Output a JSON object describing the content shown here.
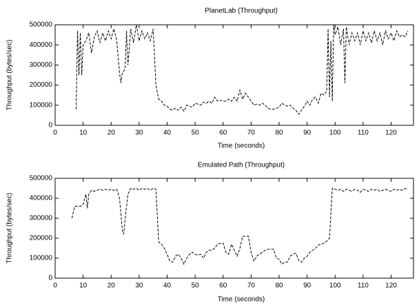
{
  "chart_data": [
    {
      "type": "line",
      "title": "PlanetLab (Throughput)",
      "xlabel": "Time (seconds)",
      "ylabel": "Throughput (bytes/sec)",
      "color": "#000000",
      "dashed": true,
      "xlim": [
        0,
        128
      ],
      "ylim": [
        0,
        500000
      ],
      "xticks": [
        0,
        10,
        20,
        30,
        40,
        50,
        60,
        70,
        80,
        90,
        100,
        110,
        120
      ],
      "yticks": [
        0,
        100000,
        200000,
        300000,
        400000,
        500000
      ],
      "x": [
        7.5,
        8,
        8.5,
        9,
        9.5,
        10,
        11,
        12,
        13,
        14,
        15,
        16,
        17,
        18,
        19,
        20,
        21,
        22,
        23,
        23.5,
        24,
        25,
        25.5,
        26,
        27,
        28,
        29,
        30,
        31,
        32,
        33,
        34,
        35,
        36,
        37,
        38,
        39,
        40,
        41,
        42,
        43,
        44,
        45,
        46,
        47,
        48,
        49,
        50,
        51,
        52,
        53,
        54,
        55,
        56,
        57,
        58,
        59,
        60,
        61,
        62,
        63,
        64,
        65,
        66,
        67,
        68,
        69,
        70,
        71,
        72,
        73,
        74,
        75,
        76,
        77,
        78,
        79,
        80,
        81,
        82,
        83,
        84,
        85,
        86,
        87,
        88,
        89,
        90,
        91,
        92,
        93,
        94,
        95,
        96,
        97,
        97.5,
        98,
        98.5,
        99,
        99.5,
        100,
        101,
        102,
        103,
        103.5,
        104,
        105,
        106,
        107,
        108,
        109,
        110,
        111,
        112,
        113,
        114,
        115,
        116,
        117,
        118,
        119,
        120,
        121,
        122,
        123,
        124,
        125,
        126
      ],
      "values": [
        80000,
        470000,
        250000,
        460000,
        250000,
        400000,
        420000,
        460000,
        360000,
        440000,
        470000,
        410000,
        460000,
        420000,
        470000,
        430000,
        480000,
        420000,
        260000,
        210000,
        260000,
        280000,
        470000,
        300000,
        480000,
        410000,
        500000,
        420000,
        470000,
        430000,
        460000,
        420000,
        480000,
        200000,
        130000,
        120000,
        100000,
        95000,
        80000,
        75000,
        85000,
        75000,
        90000,
        70000,
        100000,
        95000,
        90000,
        110000,
        105000,
        100000,
        115000,
        110000,
        120000,
        110000,
        140000,
        120000,
        125000,
        120000,
        120000,
        130000,
        120000,
        140000,
        120000,
        175000,
        130000,
        160000,
        140000,
        120000,
        100000,
        105000,
        100000,
        110000,
        100000,
        85000,
        80000,
        80000,
        85000,
        90000,
        110000,
        100000,
        95000,
        100000,
        85000,
        75000,
        55000,
        75000,
        95000,
        120000,
        100000,
        130000,
        140000,
        110000,
        160000,
        150000,
        170000,
        480000,
        140000,
        420000,
        120000,
        500000,
        450000,
        490000,
        400000,
        480000,
        210000,
        490000,
        400000,
        460000,
        420000,
        460000,
        400000,
        470000,
        420000,
        460000,
        410000,
        470000,
        420000,
        460000,
        400000,
        470000,
        430000,
        460000,
        420000,
        470000,
        440000,
        450000,
        440000,
        470000
      ]
    },
    {
      "type": "line",
      "title": "Emulated Path (Throughput)",
      "xlabel": "Time (seconds)",
      "ylabel": "Throughput (bytes/sec)",
      "color": "#000000",
      "dashed": true,
      "xlim": [
        0,
        128
      ],
      "ylim": [
        0,
        500000
      ],
      "xticks": [
        0,
        10,
        20,
        30,
        40,
        50,
        60,
        70,
        80,
        90,
        100,
        110,
        120
      ],
      "yticks": [
        0,
        100000,
        200000,
        300000,
        400000,
        500000
      ],
      "x": [
        6,
        7,
        8,
        9,
        10,
        11,
        11.5,
        12,
        13,
        14,
        15,
        16,
        17,
        18,
        19,
        20,
        21,
        22,
        23,
        24,
        24.5,
        25,
        26,
        27,
        28,
        29,
        30,
        31,
        32,
        33,
        34,
        35,
        36,
        37,
        38,
        39,
        40,
        41,
        42,
        43,
        44,
        45,
        46,
        47,
        48,
        49,
        50,
        51,
        52,
        53,
        54,
        55,
        56,
        57,
        58,
        59,
        60,
        61,
        62,
        63,
        64,
        65,
        66,
        67,
        68,
        69,
        70,
        71,
        72,
        73,
        74,
        75,
        76,
        77,
        78,
        79,
        80,
        81,
        82,
        83,
        84,
        85,
        86,
        87,
        88,
        89,
        90,
        91,
        92,
        93,
        94,
        95,
        96,
        97,
        98,
        99,
        100,
        101,
        102,
        103,
        104,
        105,
        106,
        107,
        108,
        109,
        110,
        111,
        112,
        113,
        114,
        115,
        116,
        117,
        118,
        119,
        120,
        121,
        122,
        123,
        124,
        125,
        126
      ],
      "values": [
        300000,
        360000,
        360000,
        360000,
        370000,
        420000,
        350000,
        420000,
        440000,
        435000,
        440000,
        445000,
        440000,
        445000,
        440000,
        445000,
        440000,
        445000,
        400000,
        240000,
        220000,
        300000,
        420000,
        450000,
        445000,
        450000,
        440000,
        450000,
        445000,
        450000,
        440000,
        450000,
        445000,
        180000,
        170000,
        150000,
        120000,
        85000,
        80000,
        110000,
        120000,
        100000,
        70000,
        100000,
        120000,
        130000,
        120000,
        115000,
        120000,
        100000,
        130000,
        140000,
        140000,
        150000,
        170000,
        175000,
        175000,
        130000,
        120000,
        170000,
        140000,
        110000,
        150000,
        210000,
        210000,
        210000,
        130000,
        85000,
        110000,
        120000,
        130000,
        140000,
        145000,
        145000,
        145000,
        100000,
        95000,
        70000,
        80000,
        80000,
        110000,
        120000,
        125000,
        90000,
        80000,
        100000,
        110000,
        130000,
        140000,
        150000,
        165000,
        170000,
        175000,
        185000,
        200000,
        450000,
        445000,
        440000,
        445000,
        435000,
        445000,
        440000,
        435000,
        445000,
        440000,
        430000,
        445000,
        440000,
        435000,
        445000,
        440000,
        445000,
        435000,
        440000,
        445000,
        440000,
        435000,
        445000,
        440000,
        445000,
        440000,
        450000,
        445000
      ]
    }
  ]
}
